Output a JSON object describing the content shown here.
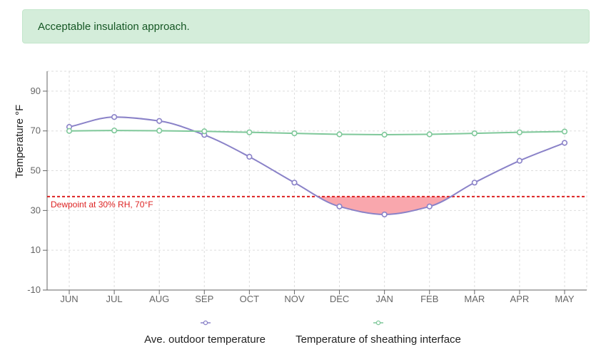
{
  "alert": {
    "message": "Acceptable insulation approach."
  },
  "colors": {
    "outdoor": "#8a82c8",
    "sheathing": "#7fc89a",
    "dewpoint": "#dd2222",
    "risk_fill": "#f9a7ad",
    "alert_bg": "#d4edda",
    "alert_text": "#155724"
  },
  "chart_data": {
    "type": "line",
    "categories": [
      "JUN",
      "JUL",
      "AUG",
      "SEP",
      "OCT",
      "NOV",
      "DEC",
      "JAN",
      "FEB",
      "MAR",
      "APR",
      "MAY"
    ],
    "series": [
      {
        "name": "Ave. outdoor temperature",
        "values": [
          72,
          77,
          75,
          68,
          57,
          44,
          32,
          28,
          32,
          44,
          55,
          64
        ]
      },
      {
        "name": "Temperature of sheathing interface",
        "values": [
          70,
          70.2,
          70.1,
          69.8,
          69.3,
          68.8,
          68.3,
          68.1,
          68.3,
          68.8,
          69.3,
          69.7
        ]
      }
    ],
    "ylabel": "Temperature °F",
    "ylim": [
      -10,
      100
    ],
    "yticks": [
      "-10",
      "10",
      "30",
      "50",
      "70",
      "90"
    ],
    "dewpoint": {
      "value": 37,
      "label": "Dewpoint at 30% RH, 70°F"
    },
    "grid": true,
    "legend": "bottom"
  }
}
